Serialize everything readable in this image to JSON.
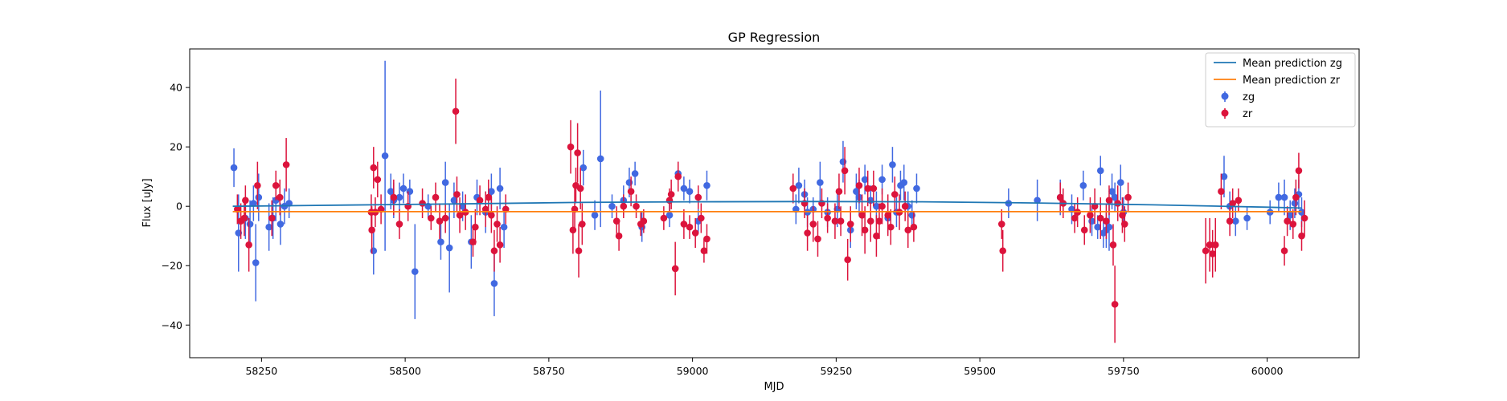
{
  "chart_data": {
    "type": "scatter",
    "title": "GP Regression",
    "xlabel": "MJD",
    "ylabel": "Flux [uJy]",
    "xlim": [
      58125,
      60160
    ],
    "ylim": [
      -51,
      53
    ],
    "xticks": [
      58250,
      58500,
      58750,
      59000,
      59250,
      59500,
      59750,
      60000
    ],
    "xtick_labels": [
      "58250",
      "58500",
      "58750",
      "59000",
      "59250",
      "59500",
      "59750",
      "60000"
    ],
    "yticks": [
      -40,
      -20,
      0,
      20,
      40
    ],
    "ytick_labels": [
      "−40",
      "−20",
      "0",
      "20",
      "40"
    ],
    "grid": false,
    "legend_position": "top-right",
    "legend": [
      {
        "label": "Mean prediction zg",
        "kind": "line",
        "color": "#1f77b4"
      },
      {
        "label": "Mean prediction zr",
        "kind": "line",
        "color": "#ff7f0e"
      },
      {
        "label": "zg",
        "kind": "errorbar",
        "color": "#4169e1"
      },
      {
        "label": "zr",
        "kind": "errorbar",
        "color": "#dc143c"
      }
    ],
    "lines": [
      {
        "name": "Mean prediction zg",
        "color": "#1f77b4",
        "x": [
          58200,
          58400,
          58600,
          58800,
          59000,
          59200,
          59400,
          59600,
          59800,
          60000,
          60060
        ],
        "y": [
          0.0,
          0.4,
          0.8,
          1.3,
          1.5,
          1.6,
          1.5,
          1.1,
          0.5,
          -0.3,
          -0.6
        ]
      },
      {
        "name": "Mean prediction zr",
        "color": "#ff7f0e",
        "x": [
          58200,
          58500,
          58800,
          59100,
          59400,
          59700,
          60060
        ],
        "y": [
          -1.8,
          -1.8,
          -1.8,
          -1.8,
          -1.8,
          -1.8,
          -1.8
        ]
      }
    ],
    "series": [
      {
        "name": "zg",
        "color": "#4169e1",
        "points": [
          [
            58202,
            13,
            6.5
          ],
          [
            58210,
            -9,
            13
          ],
          [
            58222,
            -4,
            7
          ],
          [
            58230,
            -6,
            8
          ],
          [
            58236,
            1,
            6
          ],
          [
            58240,
            -19,
            13
          ],
          [
            58245,
            3,
            8
          ],
          [
            58263,
            -7,
            8
          ],
          [
            58270,
            -4,
            7
          ],
          [
            58275,
            2,
            7
          ],
          [
            58283,
            -6,
            7
          ],
          [
            58290,
            0,
            6
          ],
          [
            58298,
            1,
            5
          ],
          [
            58445,
            -15,
            8
          ],
          [
            58465,
            17,
            32
          ],
          [
            58475,
            5,
            6
          ],
          [
            58480,
            2,
            6
          ],
          [
            58490,
            3,
            5
          ],
          [
            58497,
            6,
            5
          ],
          [
            58508,
            5,
            4
          ],
          [
            58517,
            -22,
            16
          ],
          [
            58540,
            0,
            4
          ],
          [
            58562,
            -12,
            6
          ],
          [
            58570,
            8,
            7
          ],
          [
            58577,
            -14,
            15
          ],
          [
            58585,
            2,
            6
          ],
          [
            58600,
            0,
            5
          ],
          [
            58615,
            -12,
            9
          ],
          [
            58625,
            3,
            6
          ],
          [
            58640,
            -2,
            7
          ],
          [
            58650,
            5,
            6
          ],
          [
            58655,
            -26,
            11
          ],
          [
            58665,
            6,
            7
          ],
          [
            58672,
            -7,
            7
          ],
          [
            58810,
            13,
            6
          ],
          [
            58830,
            -3,
            5
          ],
          [
            58840,
            16,
            23
          ],
          [
            58860,
            0,
            4
          ],
          [
            58880,
            2,
            5
          ],
          [
            58890,
            8,
            5
          ],
          [
            58900,
            11,
            4
          ],
          [
            58912,
            -7,
            5
          ],
          [
            58960,
            -3,
            4
          ],
          [
            58975,
            11,
            4
          ],
          [
            58985,
            6,
            4
          ],
          [
            58995,
            5,
            4
          ],
          [
            59010,
            -5,
            4
          ],
          [
            59025,
            7,
            5
          ],
          [
            59180,
            -1,
            5
          ],
          [
            59185,
            7,
            6
          ],
          [
            59195,
            4,
            5
          ],
          [
            59200,
            -2,
            5
          ],
          [
            59210,
            -1,
            4
          ],
          [
            59222,
            8,
            7
          ],
          [
            59235,
            -2,
            5
          ],
          [
            59252,
            -1,
            6
          ],
          [
            59262,
            15,
            7
          ],
          [
            59275,
            -8,
            6
          ],
          [
            59285,
            5,
            6
          ],
          [
            59290,
            3,
            6
          ],
          [
            59300,
            9,
            5
          ],
          [
            59310,
            2,
            5
          ],
          [
            59320,
            0,
            5
          ],
          [
            59330,
            9,
            5
          ],
          [
            59340,
            -4,
            5
          ],
          [
            59348,
            14,
            6
          ],
          [
            59355,
            -2,
            5
          ],
          [
            59362,
            7,
            5
          ],
          [
            59368,
            8,
            6
          ],
          [
            59375,
            0,
            5
          ],
          [
            59382,
            -3,
            5
          ],
          [
            59390,
            6,
            5
          ],
          [
            59550,
            1,
            5
          ],
          [
            59600,
            2,
            7
          ],
          [
            59640,
            3,
            6
          ],
          [
            59660,
            -1,
            5
          ],
          [
            59680,
            7,
            5
          ],
          [
            59695,
            -5,
            5
          ],
          [
            59705,
            -7,
            4
          ],
          [
            59710,
            12,
            5
          ],
          [
            59715,
            -9,
            5
          ],
          [
            59720,
            -8,
            6
          ],
          [
            59725,
            -7,
            8
          ],
          [
            59730,
            5,
            6
          ],
          [
            59735,
            3,
            5
          ],
          [
            59745,
            8,
            6
          ],
          [
            59750,
            -2,
            5
          ],
          [
            59925,
            10,
            7
          ],
          [
            59935,
            0,
            5
          ],
          [
            59945,
            -5,
            5
          ],
          [
            59965,
            -4,
            4
          ],
          [
            60005,
            -2,
            4
          ],
          [
            60020,
            3,
            5
          ],
          [
            60030,
            3,
            6
          ],
          [
            60040,
            -3,
            5
          ],
          [
            60048,
            1,
            5
          ],
          [
            60055,
            4,
            5
          ],
          [
            60060,
            -2,
            5
          ]
        ]
      },
      {
        "name": "zr",
        "color": "#dc143c",
        "points": [
          [
            58208,
            -1,
            5
          ],
          [
            58214,
            -5,
            6
          ],
          [
            58220,
            -4,
            6
          ],
          [
            58222,
            2,
            5
          ],
          [
            58228,
            -13,
            9
          ],
          [
            58243,
            7,
            8
          ],
          [
            58268,
            -4,
            6
          ],
          [
            58275,
            7,
            5
          ],
          [
            58282,
            3,
            6
          ],
          [
            58293,
            14,
            9
          ],
          [
            58441,
            -2,
            6
          ],
          [
            58442,
            -8,
            8
          ],
          [
            58445,
            13,
            7
          ],
          [
            58448,
            -2,
            5
          ],
          [
            58452,
            9,
            6
          ],
          [
            58458,
            -1,
            5
          ],
          [
            58480,
            3,
            6
          ],
          [
            58490,
            -6,
            5
          ],
          [
            58505,
            0,
            5
          ],
          [
            58530,
            1,
            5
          ],
          [
            58545,
            -4,
            4
          ],
          [
            58553,
            3,
            5
          ],
          [
            58560,
            -5,
            6
          ],
          [
            58570,
            -4,
            5
          ],
          [
            58588,
            32,
            11
          ],
          [
            58590,
            4,
            6
          ],
          [
            58595,
            -3,
            6
          ],
          [
            58605,
            -2,
            6
          ],
          [
            58618,
            -12,
            5
          ],
          [
            58622,
            -7,
            6
          ],
          [
            58630,
            2,
            5
          ],
          [
            58640,
            -1,
            6
          ],
          [
            58645,
            3,
            6
          ],
          [
            58650,
            -3,
            6
          ],
          [
            58655,
            -15,
            7
          ],
          [
            58660,
            -6,
            6
          ],
          [
            58665,
            -13,
            6
          ],
          [
            58675,
            -1,
            5
          ],
          [
            58788,
            20,
            9
          ],
          [
            58792,
            -8,
            8
          ],
          [
            58795,
            -1,
            7
          ],
          [
            58797,
            7,
            6
          ],
          [
            58800,
            18,
            10
          ],
          [
            58802,
            -15,
            9
          ],
          [
            58805,
            6,
            7
          ],
          [
            58808,
            -6,
            7
          ],
          [
            58868,
            -5,
            5
          ],
          [
            58872,
            -10,
            5
          ],
          [
            58880,
            0,
            4
          ],
          [
            58893,
            5,
            5
          ],
          [
            58902,
            0,
            4
          ],
          [
            58910,
            -6,
            4
          ],
          [
            58915,
            -5,
            4
          ],
          [
            58950,
            -4,
            4
          ],
          [
            58960,
            2,
            4
          ],
          [
            58963,
            4,
            5
          ],
          [
            58970,
            -21,
            9
          ],
          [
            58975,
            10,
            5
          ],
          [
            58985,
            -6,
            5
          ],
          [
            58995,
            -7,
            4
          ],
          [
            59005,
            -9,
            5
          ],
          [
            59010,
            3,
            4
          ],
          [
            59015,
            -4,
            5
          ],
          [
            59020,
            -15,
            4
          ],
          [
            59025,
            -11,
            5
          ],
          [
            59175,
            6,
            5
          ],
          [
            59195,
            1,
            5
          ],
          [
            59200,
            -9,
            6
          ],
          [
            59210,
            -6,
            6
          ],
          [
            59218,
            -11,
            6
          ],
          [
            59225,
            1,
            5
          ],
          [
            59235,
            -4,
            5
          ],
          [
            59248,
            -5,
            6
          ],
          [
            59255,
            5,
            6
          ],
          [
            59258,
            -5,
            5
          ],
          [
            59265,
            12,
            8
          ],
          [
            59270,
            -18,
            7
          ],
          [
            59275,
            -6,
            6
          ],
          [
            59290,
            7,
            6
          ],
          [
            59295,
            -3,
            7
          ],
          [
            59300,
            -8,
            8
          ],
          [
            59305,
            6,
            6
          ],
          [
            59310,
            -5,
            7
          ],
          [
            59315,
            6,
            6
          ],
          [
            59320,
            -10,
            7
          ],
          [
            59325,
            -5,
            6
          ],
          [
            59330,
            0,
            6
          ],
          [
            59340,
            -3,
            7
          ],
          [
            59345,
            -7,
            6
          ],
          [
            59352,
            4,
            6
          ],
          [
            59360,
            -2,
            6
          ],
          [
            59370,
            0,
            5
          ],
          [
            59375,
            -8,
            6
          ],
          [
            59385,
            -7,
            5
          ],
          [
            59538,
            -6,
            5
          ],
          [
            59540,
            -15,
            7
          ],
          [
            59640,
            3,
            5
          ],
          [
            59645,
            1,
            5
          ],
          [
            59665,
            -4,
            5
          ],
          [
            59670,
            -2,
            5
          ],
          [
            59682,
            -8,
            5
          ],
          [
            59692,
            -3,
            6
          ],
          [
            59700,
            0,
            6
          ],
          [
            59710,
            -4,
            7
          ],
          [
            59720,
            -5,
            6
          ],
          [
            59725,
            2,
            5
          ],
          [
            59732,
            -13,
            7
          ],
          [
            59735,
            -33,
            13
          ],
          [
            59740,
            1,
            6
          ],
          [
            59748,
            -3,
            6
          ],
          [
            59752,
            -6,
            6
          ],
          [
            59758,
            3,
            5
          ],
          [
            59893,
            -15,
            11
          ],
          [
            59900,
            -13,
            9
          ],
          [
            59905,
            -16,
            8
          ],
          [
            59910,
            -13,
            9
          ],
          [
            59920,
            5,
            6
          ],
          [
            59935,
            -5,
            5
          ],
          [
            59940,
            1,
            5
          ],
          [
            59950,
            2,
            4
          ],
          [
            60030,
            -15,
            5
          ],
          [
            60035,
            -5,
            5
          ],
          [
            60045,
            -6,
            5
          ],
          [
            60050,
            3,
            6
          ],
          [
            60055,
            12,
            6
          ],
          [
            60060,
            -10,
            5
          ],
          [
            60065,
            -4,
            6
          ]
        ]
      }
    ]
  }
}
